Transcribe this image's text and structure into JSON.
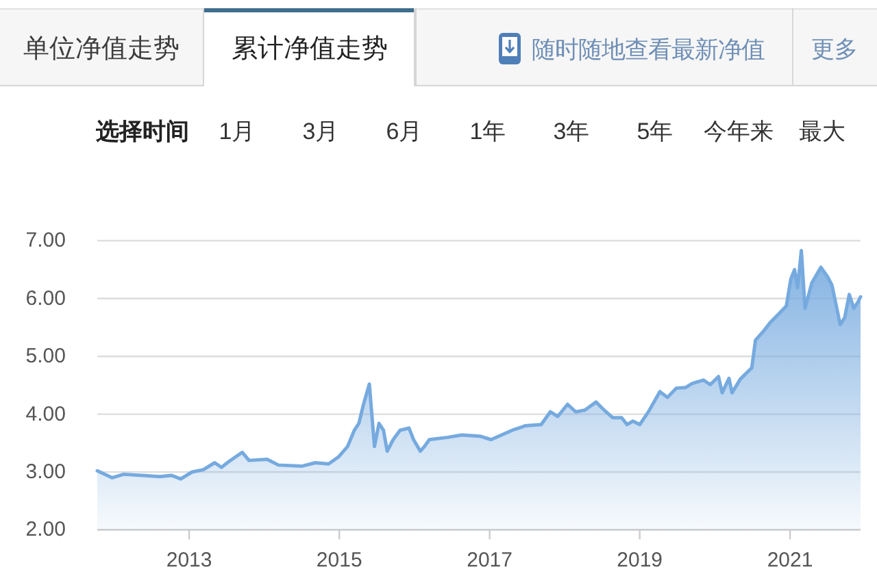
{
  "chart_data": [
    {
      "type": "other",
      "annotations": [
        "单位净值走势",
        "累计净值走势",
        "随时随地查看最新净值",
        "更多"
      ]
    },
    {
      "type": "other",
      "annotations": [
        "选择时间",
        "1月",
        "3月",
        "6月",
        "1年",
        "3年",
        "5年",
        "今年来",
        "最大"
      ]
    },
    {
      "type": "area",
      "color": "#76aadf",
      "grid": "y",
      "xlim": [
        "2011-10-12",
        "2021-12-10"
      ],
      "xticks": [
        "2013",
        "2015",
        "2017",
        "2019",
        "2021"
      ],
      "ylim": [
        2,
        7
      ],
      "yticks": [
        {
          "value": 2,
          "label": "2.00"
        },
        {
          "value": 3,
          "label": "3.00"
        },
        {
          "value": 4,
          "label": "4.00"
        },
        {
          "value": 5,
          "label": "5.00"
        },
        {
          "value": 6,
          "label": "6.00"
        },
        {
          "value": 7,
          "label": "7.00"
        }
      ],
      "x": [
        "2011-10-12",
        "2011-12-24",
        "2012-02-17",
        "2012-05-15",
        "2012-08-11",
        "2012-10-08",
        "2012-11-21",
        "2013-01-15",
        "2013-03-11",
        "2013-05-05",
        "2013-06-07",
        "2013-07-13",
        "2013-09-16",
        "2013-10-19",
        "2014-01-15",
        "2014-03-11",
        "2014-07-02",
        "2014-09-06",
        "2014-11-10",
        "2014-12-28",
        "2015-02-10",
        "2015-03-15",
        "2015-04-06",
        "2015-04-28",
        "2015-05-27",
        "2015-06-21",
        "2015-07-13",
        "2015-08-04",
        "2015-08-22",
        "2015-09-20",
        "2015-10-23",
        "2015-12-06",
        "2015-12-28",
        "2016-01-30",
        "2016-02-21",
        "2016-03-14",
        "2016-06-13",
        "2016-08-18",
        "2016-11-14",
        "2017-01-08",
        "2017-04-20",
        "2017-06-25",
        "2017-09-09",
        "2017-10-23",
        "2017-11-28",
        "2018-01-15",
        "2018-02-24",
        "2018-04-09",
        "2018-06-03",
        "2018-07-06",
        "2018-08-22",
        "2018-10-05",
        "2018-10-31",
        "2018-11-29",
        "2019-01-01",
        "2019-02-14",
        "2019-04-09",
        "2019-05-16",
        "2019-06-28",
        "2019-08-11",
        "2019-09-13",
        "2019-11-07",
        "2019-12-10",
        "2020-01-19",
        "2020-02-06",
        "2020-03-10",
        "2020-03-25",
        "2020-05-05",
        "2020-06-29",
        "2020-07-17",
        "2020-08-26",
        "2020-09-28",
        "2020-11-11",
        "2020-12-14",
        "2021-01-05",
        "2021-01-23",
        "2021-02-07",
        "2021-02-25",
        "2021-03-15",
        "2021-04-17",
        "2021-05-31",
        "2021-07-02",
        "2021-07-24",
        "2021-09-02",
        "2021-09-24",
        "2021-10-16",
        "2021-11-07",
        "2021-11-29",
        "2021-12-10"
      ],
      "values": [
        3.02,
        2.9,
        2.96,
        2.94,
        2.92,
        2.94,
        2.88,
        3.0,
        3.04,
        3.16,
        3.08,
        3.18,
        3.34,
        3.2,
        3.22,
        3.12,
        3.1,
        3.16,
        3.14,
        3.26,
        3.44,
        3.72,
        3.84,
        4.16,
        4.52,
        3.44,
        3.84,
        3.72,
        3.36,
        3.56,
        3.72,
        3.76,
        3.56,
        3.36,
        3.45,
        3.56,
        3.6,
        3.64,
        3.62,
        3.56,
        3.72,
        3.8,
        3.82,
        4.04,
        3.96,
        4.17,
        4.04,
        4.07,
        4.21,
        4.09,
        3.94,
        3.94,
        3.82,
        3.88,
        3.82,
        4.05,
        4.39,
        4.29,
        4.45,
        4.46,
        4.53,
        4.59,
        4.51,
        4.65,
        4.37,
        4.62,
        4.37,
        4.61,
        4.8,
        5.28,
        5.44,
        5.59,
        5.75,
        5.87,
        6.34,
        6.5,
        6.19,
        6.83,
        5.83,
        6.27,
        6.54,
        6.38,
        6.23,
        5.55,
        5.67,
        6.07,
        5.83,
        5.95,
        6.03
      ]
    }
  ]
}
